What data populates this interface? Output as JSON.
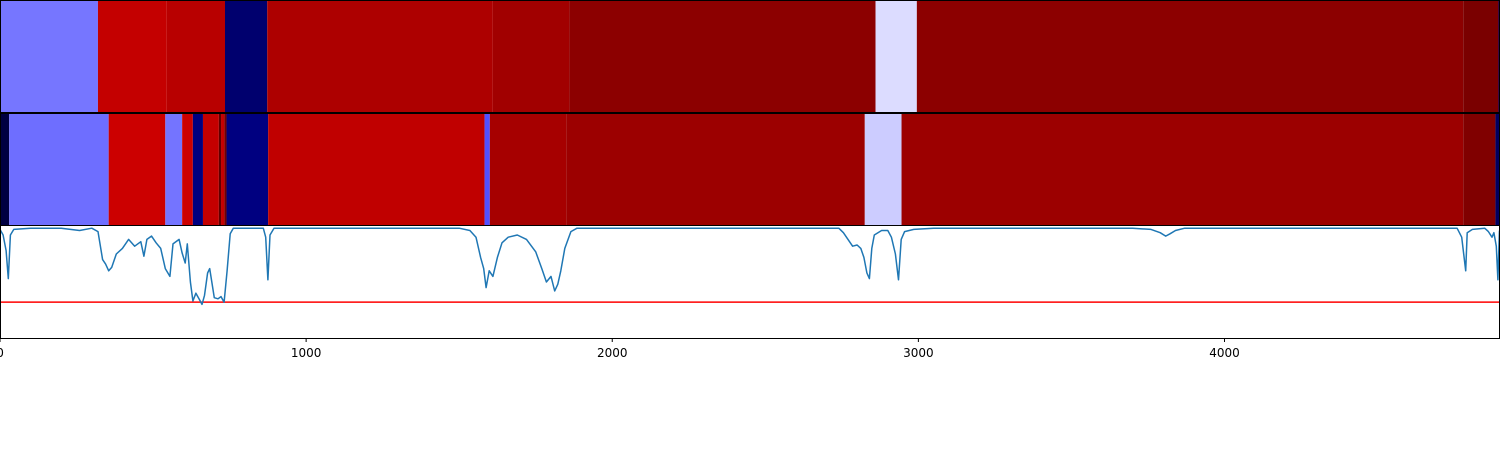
{
  "chart_data": [
    {
      "type": "heatmap",
      "panel": "top-band",
      "x_range": [
        0,
        4900
      ],
      "segments": [
        {
          "x0": 0,
          "x1": 320,
          "color": "#7676ff"
        },
        {
          "x0": 320,
          "x1": 545,
          "color": "#c40000"
        },
        {
          "x0": 545,
          "x1": 735,
          "color": "#b80000"
        },
        {
          "x0": 735,
          "x1": 873,
          "color": "#00006e"
        },
        {
          "x0": 873,
          "x1": 1610,
          "color": "#ad0000"
        },
        {
          "x0": 1610,
          "x1": 1860,
          "color": "#a10000"
        },
        {
          "x0": 1860,
          "x1": 2860,
          "color": "#8c0000"
        },
        {
          "x0": 2860,
          "x1": 2995,
          "color": "#dcdcff"
        },
        {
          "x0": 2995,
          "x1": 4780,
          "color": "#8c0000"
        },
        {
          "x0": 4780,
          "x1": 4895,
          "color": "#7a0000"
        },
        {
          "x0": 4895,
          "x1": 4900,
          "color": "#00006e"
        }
      ]
    },
    {
      "type": "heatmap",
      "panel": "middle-band",
      "x_range": [
        0,
        4900
      ],
      "segments": [
        {
          "x0": 0,
          "x1": 30,
          "color": "#000040"
        },
        {
          "x0": 30,
          "x1": 355,
          "color": "#6e6eff"
        },
        {
          "x0": 355,
          "x1": 540,
          "color": "#cc0000"
        },
        {
          "x0": 540,
          "x1": 595,
          "color": "#7474ff"
        },
        {
          "x0": 595,
          "x1": 630,
          "color": "#cc0000"
        },
        {
          "x0": 630,
          "x1": 663,
          "color": "#000080"
        },
        {
          "x0": 663,
          "x1": 715,
          "color": "#c40000"
        },
        {
          "x0": 715,
          "x1": 722,
          "color": "#600000"
        },
        {
          "x0": 722,
          "x1": 733,
          "color": "#c40000"
        },
        {
          "x0": 733,
          "x1": 740,
          "color": "#700000"
        },
        {
          "x0": 740,
          "x1": 876,
          "color": "#000080"
        },
        {
          "x0": 876,
          "x1": 1583,
          "color": "#c00000"
        },
        {
          "x0": 1583,
          "x1": 1600,
          "color": "#5050ff"
        },
        {
          "x0": 1600,
          "x1": 1850,
          "color": "#a60000"
        },
        {
          "x0": 1850,
          "x1": 2825,
          "color": "#9c0000"
        },
        {
          "x0": 2825,
          "x1": 2945,
          "color": "#ccccff"
        },
        {
          "x0": 2945,
          "x1": 4780,
          "color": "#9c0000"
        },
        {
          "x0": 4780,
          "x1": 4885,
          "color": "#800000"
        },
        {
          "x0": 4885,
          "x1": 4900,
          "color": "#000060"
        }
      ]
    },
    {
      "type": "line",
      "panel": "bottom-plot",
      "xlim": [
        0,
        4900
      ],
      "ylim": [
        -1.0,
        0.0
      ],
      "xticks": [
        0,
        1000,
        2000,
        3000,
        4000
      ],
      "xtick_labels": [
        "0",
        "1000",
        "2000",
        "3000",
        "4000"
      ],
      "series": [
        {
          "color": "#1f77b4",
          "points": [
            [
              0,
              -0.03
            ],
            [
              10,
              -0.08
            ],
            [
              20,
              -0.22
            ],
            [
              27,
              -0.47
            ],
            [
              34,
              -0.08
            ],
            [
              45,
              -0.03
            ],
            [
              100,
              -0.02
            ],
            [
              200,
              -0.02
            ],
            [
              260,
              -0.04
            ],
            [
              300,
              -0.02
            ],
            [
              320,
              -0.05
            ],
            [
              335,
              -0.3
            ],
            [
              345,
              -0.34
            ],
            [
              355,
              -0.4
            ],
            [
              365,
              -0.37
            ],
            [
              380,
              -0.25
            ],
            [
              400,
              -0.2
            ],
            [
              420,
              -0.12
            ],
            [
              440,
              -0.18
            ],
            [
              460,
              -0.14
            ],
            [
              470,
              -0.27
            ],
            [
              480,
              -0.12
            ],
            [
              495,
              -0.09
            ],
            [
              510,
              -0.15
            ],
            [
              525,
              -0.2
            ],
            [
              540,
              -0.38
            ],
            [
              555,
              -0.45
            ],
            [
              565,
              -0.16
            ],
            [
              585,
              -0.12
            ],
            [
              595,
              -0.24
            ],
            [
              605,
              -0.33
            ],
            [
              612,
              -0.16
            ],
            [
              622,
              -0.5
            ],
            [
              630,
              -0.67
            ],
            [
              640,
              -0.6
            ],
            [
              652,
              -0.66
            ],
            [
              660,
              -0.7
            ],
            [
              668,
              -0.62
            ],
            [
              678,
              -0.42
            ],
            [
              685,
              -0.38
            ],
            [
              700,
              -0.64
            ],
            [
              712,
              -0.65
            ],
            [
              722,
              -0.63
            ],
            [
              732,
              -0.68
            ],
            [
              742,
              -0.4
            ],
            [
              752,
              -0.07
            ],
            [
              762,
              -0.02
            ],
            [
              860,
              -0.02
            ],
            [
              868,
              -0.1
            ],
            [
              875,
              -0.48
            ],
            [
              882,
              -0.08
            ],
            [
              895,
              -0.02
            ],
            [
              1500,
              -0.02
            ],
            [
              1535,
              -0.04
            ],
            [
              1555,
              -0.1
            ],
            [
              1570,
              -0.28
            ],
            [
              1580,
              -0.38
            ],
            [
              1588,
              -0.55
            ],
            [
              1598,
              -0.4
            ],
            [
              1610,
              -0.45
            ],
            [
              1625,
              -0.28
            ],
            [
              1640,
              -0.15
            ],
            [
              1660,
              -0.1
            ],
            [
              1690,
              -0.08
            ],
            [
              1720,
              -0.12
            ],
            [
              1750,
              -0.23
            ],
            [
              1770,
              -0.38
            ],
            [
              1785,
              -0.5
            ],
            [
              1800,
              -0.45
            ],
            [
              1812,
              -0.58
            ],
            [
              1822,
              -0.52
            ],
            [
              1832,
              -0.4
            ],
            [
              1845,
              -0.2
            ],
            [
              1865,
              -0.05
            ],
            [
              1885,
              -0.02
            ],
            [
              2740,
              -0.02
            ],
            [
              2755,
              -0.06
            ],
            [
              2770,
              -0.12
            ],
            [
              2785,
              -0.18
            ],
            [
              2800,
              -0.17
            ],
            [
              2812,
              -0.2
            ],
            [
              2822,
              -0.28
            ],
            [
              2832,
              -0.42
            ],
            [
              2840,
              -0.47
            ],
            [
              2848,
              -0.2
            ],
            [
              2856,
              -0.08
            ],
            [
              2880,
              -0.04
            ],
            [
              2900,
              -0.04
            ],
            [
              2912,
              -0.1
            ],
            [
              2925,
              -0.25
            ],
            [
              2935,
              -0.48
            ],
            [
              2944,
              -0.12
            ],
            [
              2955,
              -0.05
            ],
            [
              2985,
              -0.03
            ],
            [
              3050,
              -0.02
            ],
            [
              3700,
              -0.02
            ],
            [
              3760,
              -0.03
            ],
            [
              3790,
              -0.06
            ],
            [
              3808,
              -0.09
            ],
            [
              3822,
              -0.07
            ],
            [
              3840,
              -0.04
            ],
            [
              3870,
              -0.02
            ],
            [
              4000,
              -0.02
            ],
            [
              4660,
              -0.02
            ],
            [
              4760,
              -0.02
            ],
            [
              4775,
              -0.1
            ],
            [
              4788,
              -0.4
            ],
            [
              4793,
              -0.06
            ],
            [
              4810,
              -0.03
            ],
            [
              4850,
              -0.02
            ],
            [
              4862,
              -0.05
            ],
            [
              4874,
              -0.1
            ],
            [
              4880,
              -0.06
            ],
            [
              4888,
              -0.18
            ],
            [
              4893,
              -0.48
            ],
            [
              4898,
              -0.05
            ],
            [
              4900,
              -0.02
            ]
          ]
        }
      ],
      "hlines": [
        {
          "y": -0.68,
          "color": "#ff0000"
        }
      ]
    }
  ]
}
